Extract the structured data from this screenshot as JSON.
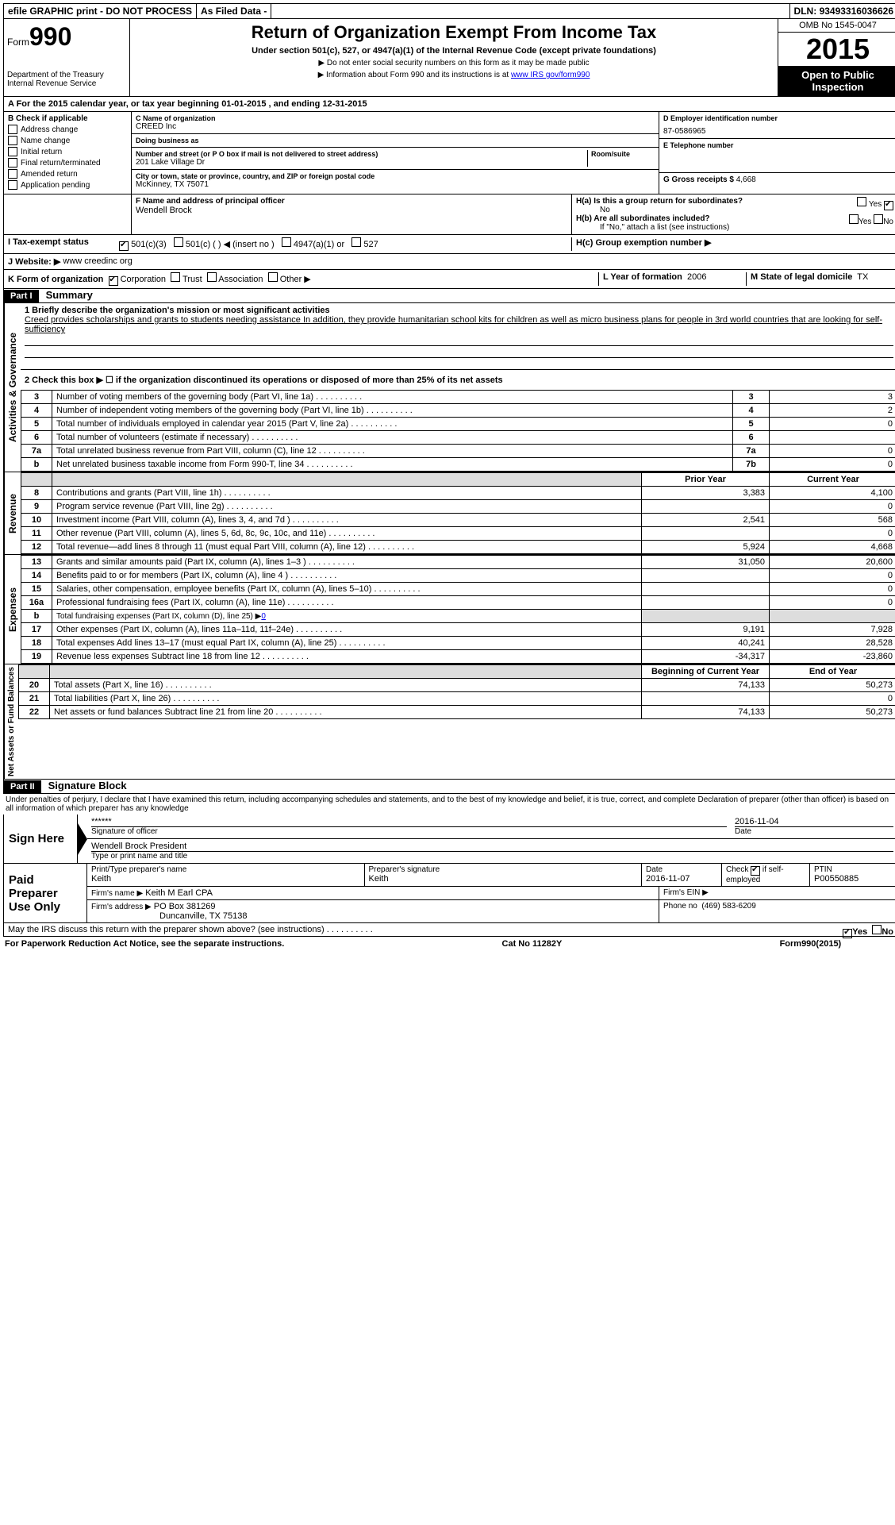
{
  "topbar": {
    "efile": "efile GRAPHIC print - DO NOT PROCESS",
    "asfiled": "As Filed Data -",
    "dln_label": "DLN:",
    "dln": "93493316036626"
  },
  "header": {
    "form_label": "Form",
    "form_number": "990",
    "dept": "Department of the Treasury",
    "irs": "Internal Revenue Service",
    "title": "Return of Organization Exempt From Income Tax",
    "subtitle": "Under section 501(c), 527, or 4947(a)(1) of the Internal Revenue Code (except private foundations)",
    "note1": "▶ Do not enter social security numbers on this form as it may be made public",
    "note2": "▶ Information about Form 990 and its instructions is at ",
    "note2_link": "www IRS gov/form990",
    "omb": "OMB No 1545-0047",
    "taxyear": "2015",
    "open": "Open to Public Inspection"
  },
  "A": {
    "text": "A  For the 2015 calendar year, or tax year beginning 01-01-2015    , and ending 12-31-2015"
  },
  "B": {
    "header": "B  Check if applicable",
    "items": [
      "Address change",
      "Name change",
      "Initial return",
      "Final return/terminated",
      "Amended return",
      "Application pending"
    ]
  },
  "C": {
    "label": "C  Name of organization",
    "name": "CREED Inc",
    "dba_label": "Doing business as",
    "dba": "",
    "street_label": "Number and street (or P O  box if mail is not delivered to street address)",
    "room_label": "Room/suite",
    "street": "201 Lake Village Dr",
    "city_label": "City or town, state or province, country, and ZIP or foreign postal code",
    "city": "McKinney, TX  75071"
  },
  "D": {
    "label": "D Employer identification number",
    "value": "87-0586965"
  },
  "E": {
    "label": "E Telephone number",
    "value": ""
  },
  "G": {
    "label": "G Gross receipts $",
    "value": "4,668"
  },
  "F": {
    "label": "F  Name and address of principal officer",
    "value": "Wendell Brock"
  },
  "H": {
    "a": "H(a)  Is this a group return for subordinates?",
    "a_no": "No",
    "b": "H(b)  Are all subordinates included?",
    "b_note": "If \"No,\" attach a list  (see instructions)",
    "c": "H(c)  Group exemption number ▶"
  },
  "I": {
    "label": "I  Tax-exempt status",
    "opt1": "501(c)(3)",
    "opt2": "501(c) (  ) ◀ (insert no )",
    "opt3": "4947(a)(1) or",
    "opt4": "527"
  },
  "J": {
    "label": "J  Website: ▶",
    "value": "www creedinc org"
  },
  "K": {
    "label": "K Form of organization",
    "opts": [
      "Corporation",
      "Trust",
      "Association",
      "Other ▶"
    ]
  },
  "L": {
    "label": "L Year of formation",
    "value": "2006"
  },
  "M": {
    "label": "M State of legal domicile",
    "value": "TX"
  },
  "partI": {
    "label": "Part I",
    "title": "Summary",
    "line1_label": "1 Briefly describe the organization's mission or most significant activities",
    "mission": "Creed provides scholarships and grants to students needing assistance  In addition, they provide humanitarian school kits for children as well as micro business plans for people in 3rd world countries that are looking for self-sufficiency",
    "line2": "2  Check this box ▶ ☐ if the organization discontinued its operations or disposed of more than 25% of its net assets",
    "governance_label": "Activities & Governance",
    "revenue_label": "Revenue",
    "expenses_label": "Expenses",
    "netassets_label": "Net Assets or Fund Balances",
    "rows_gov": [
      {
        "n": "3",
        "t": "Number of voting members of the governing body (Part VI, line 1a)",
        "c": "3",
        "v": "3"
      },
      {
        "n": "4",
        "t": "Number of independent voting members of the governing body (Part VI, line 1b)",
        "c": "4",
        "v": "2"
      },
      {
        "n": "5",
        "t": "Total number of individuals employed in calendar year 2015 (Part V, line 2a)",
        "c": "5",
        "v": "0"
      },
      {
        "n": "6",
        "t": "Total number of volunteers (estimate if necessary)",
        "c": "6",
        "v": ""
      },
      {
        "n": "7a",
        "t": "Total unrelated business revenue from Part VIII, column (C), line 12",
        "c": "7a",
        "v": "0"
      },
      {
        "n": "b",
        "t": "Net unrelated business taxable income from Form 990-T, line 34",
        "c": "7b",
        "v": "0"
      }
    ],
    "prior_year": "Prior Year",
    "current_year": "Current Year",
    "rows_rev": [
      {
        "n": "8",
        "t": "Contributions and grants (Part VIII, line 1h)",
        "p": "3,383",
        "c": "4,100"
      },
      {
        "n": "9",
        "t": "Program service revenue (Part VIII, line 2g)",
        "p": "",
        "c": "0"
      },
      {
        "n": "10",
        "t": "Investment income (Part VIII, column (A), lines 3, 4, and 7d )",
        "p": "2,541",
        "c": "568"
      },
      {
        "n": "11",
        "t": "Other revenue (Part VIII, column (A), lines 5, 6d, 8c, 9c, 10c, and 11e)",
        "p": "",
        "c": "0"
      },
      {
        "n": "12",
        "t": "Total revenue—add lines 8 through 11 (must equal Part VIII, column (A), line 12)",
        "p": "5,924",
        "c": "4,668"
      }
    ],
    "rows_exp": [
      {
        "n": "13",
        "t": "Grants and similar amounts paid (Part IX, column (A), lines 1–3 )",
        "p": "31,050",
        "c": "20,600"
      },
      {
        "n": "14",
        "t": "Benefits paid to or for members (Part IX, column (A), line 4 )",
        "p": "",
        "c": "0"
      },
      {
        "n": "15",
        "t": "Salaries, other compensation, employee benefits (Part IX, column (A), lines 5–10)",
        "p": "",
        "c": "0"
      },
      {
        "n": "16a",
        "t": "Professional fundraising fees (Part IX, column (A), line 11e)",
        "p": "",
        "c": "0"
      },
      {
        "n": "b",
        "t": "Total fundraising expenses (Part IX, column (D), line 25) ▶",
        "p": "",
        "c": "",
        "inline": "0"
      },
      {
        "n": "17",
        "t": "Other expenses (Part IX, column (A), lines 11a–11d, 11f–24e)",
        "p": "9,191",
        "c": "7,928"
      },
      {
        "n": "18",
        "t": "Total expenses  Add lines 13–17 (must equal Part IX, column (A), line 25)",
        "p": "40,241",
        "c": "28,528"
      },
      {
        "n": "19",
        "t": "Revenue less expenses  Subtract line 18 from line 12",
        "p": "-34,317",
        "c": "-23,860"
      }
    ],
    "begin_year": "Beginning of Current Year",
    "end_year": "End of Year",
    "rows_net": [
      {
        "n": "20",
        "t": "Total assets (Part X, line 16)",
        "p": "74,133",
        "c": "50,273"
      },
      {
        "n": "21",
        "t": "Total liabilities (Part X, line 26)",
        "p": "",
        "c": "0"
      },
      {
        "n": "22",
        "t": "Net assets or fund balances  Subtract line 21 from line 20",
        "p": "74,133",
        "c": "50,273"
      }
    ]
  },
  "partII": {
    "label": "Part II",
    "title": "Signature Block",
    "perjury": "Under penalties of perjury, I declare that I have examined this return, including accompanying schedules and statements, and to the best of my knowledge and belief, it is true, correct, and complete  Declaration of preparer (other than officer) is based on all information of which preparer has any knowledge"
  },
  "sign": {
    "label": "Sign Here",
    "sig_stars": "******",
    "sig_date": "2016-11-04",
    "sig_label": "Signature of officer",
    "date_label": "Date",
    "officer": "Wendell Brock  President",
    "print_label": "Type or print name and title"
  },
  "paid": {
    "label": "Paid Preparer Use Only",
    "print_label": "Print/Type preparer's name",
    "print_name": "Keith",
    "sig_label": "Preparer's signature",
    "sig_name": "Keith",
    "date_label": "Date",
    "date": "2016-11-07",
    "check_label": "Check ☑ if self-employed",
    "ptin_label": "PTIN",
    "ptin": "P00550885",
    "firm_name_label": "Firm's name    ▶",
    "firm_name": "Keith M Earl CPA",
    "firm_ein_label": "Firm's EIN ▶",
    "firm_addr_label": "Firm's address ▶",
    "firm_addr1": "PO Box 381269",
    "firm_addr2": "Duncanville, TX  75138",
    "phone_label": "Phone no",
    "phone": "(469) 583-6209"
  },
  "discuss": {
    "text": "May the IRS discuss this return with the preparer shown above? (see instructions)",
    "yes": "Yes",
    "no": "No"
  },
  "footer": {
    "left": "For Paperwork Reduction Act Notice, see the separate instructions.",
    "cat": "Cat No  11282Y",
    "form": "Form",
    "formno": "990",
    "year": "(2015)"
  }
}
